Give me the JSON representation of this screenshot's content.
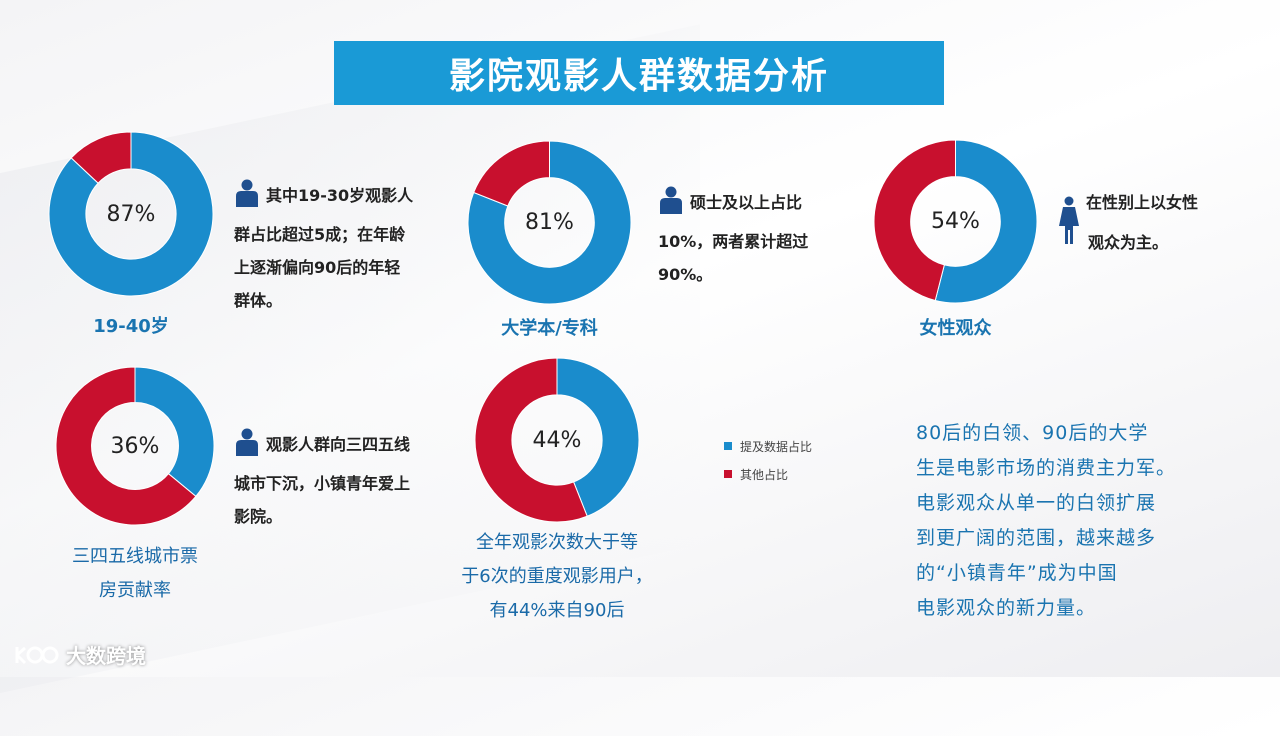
{
  "title": "影院观影人群数据分析",
  "colors": {
    "primary": "#1a8ccc",
    "secondary": "#c8102e",
    "title_bg": "#1a9ad6"
  },
  "chart_data": [
    {
      "type": "pie",
      "hole": 0.55,
      "center_label": "87%",
      "label": "19-40岁",
      "slices": [
        {
          "name": "提及数据占比",
          "value": 87
        },
        {
          "name": "其他占比",
          "value": 13
        }
      ]
    },
    {
      "type": "pie",
      "hole": 0.55,
      "center_label": "81%",
      "label": "大学本/专科",
      "slices": [
        {
          "name": "提及数据占比",
          "value": 81
        },
        {
          "name": "其他占比",
          "value": 19
        }
      ]
    },
    {
      "type": "pie",
      "hole": 0.55,
      "center_label": "54%",
      "label": "女性观众",
      "slices": [
        {
          "name": "提及数据占比",
          "value": 54
        },
        {
          "name": "其他占比",
          "value": 46
        }
      ]
    },
    {
      "type": "pie",
      "hole": 0.55,
      "center_label": "36%",
      "label_lines": [
        "三四五线城市票",
        "房贡献率"
      ],
      "slices": [
        {
          "name": "提及数据占比",
          "value": 36
        },
        {
          "name": "其他占比",
          "value": 64
        }
      ]
    },
    {
      "type": "pie",
      "hole": 0.55,
      "center_label": "44%",
      "label_lines": [
        "全年观影次数大于等",
        "于6次的重度观影用户，",
        "有44%来自90后"
      ],
      "slices": [
        {
          "name": "提及数据占比",
          "value": 44
        },
        {
          "name": "其他占比",
          "value": 56
        }
      ]
    }
  ],
  "notes": {
    "age": [
      "其中19-30岁观影人",
      "群占比超过5成；在年龄",
      "上逐渐偏向90后的年轻",
      "群体。"
    ],
    "edu": [
      "硕士及以上占比",
      "10%，两者累计超过",
      "90%。"
    ],
    "gender": [
      "在性别上以女性",
      "观众为主。"
    ],
    "city": [
      "观影人群向三四五线",
      "城市下沉，小镇青年爱上",
      "影院。"
    ]
  },
  "legend": [
    {
      "name": "提及数据占比",
      "color": "#1a8ccc"
    },
    {
      "name": "其他占比",
      "color": "#c8102e"
    }
  ],
  "summary": [
    "80后的白领、90后的大学",
    "生是电影市场的消费主力军。",
    "电影观众从单一的白领扩展",
    "到更广阔的范围，越来越多",
    "的“小镇青年”成为中国",
    "电影观众的新力量。"
  ],
  "watermark": "大数跨境"
}
